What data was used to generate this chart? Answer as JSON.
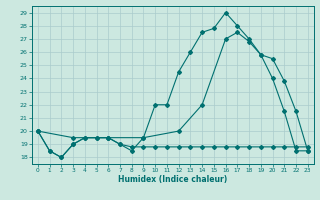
{
  "title": "",
  "xlabel": "Humidex (Indice chaleur)",
  "ylabel": "",
  "background_color": "#cce8e0",
  "grid_color": "#aacccc",
  "line_color": "#007070",
  "xlim": [
    -0.5,
    23.5
  ],
  "ylim": [
    17.5,
    29.5
  ],
  "xticks": [
    0,
    1,
    2,
    3,
    4,
    5,
    6,
    7,
    8,
    9,
    10,
    11,
    12,
    13,
    14,
    15,
    16,
    17,
    18,
    19,
    20,
    21,
    22,
    23
  ],
  "yticks": [
    18,
    19,
    20,
    21,
    22,
    23,
    24,
    25,
    26,
    27,
    28,
    29
  ],
  "line1_x": [
    0,
    1,
    2,
    3,
    4,
    5,
    6,
    7,
    8,
    9,
    10,
    11,
    12,
    13,
    14,
    15,
    16,
    17,
    18,
    19,
    20,
    21,
    22,
    23
  ],
  "line1_y": [
    20,
    18.5,
    18,
    19,
    19.5,
    19.5,
    19.5,
    19,
    18.8,
    18.8,
    18.8,
    18.8,
    18.8,
    18.8,
    18.8,
    18.8,
    18.8,
    18.8,
    18.8,
    18.8,
    18.8,
    18.8,
    18.8,
    18.8
  ],
  "line2_x": [
    0,
    1,
    2,
    3,
    4,
    5,
    6,
    7,
    8,
    9,
    10,
    11,
    12,
    13,
    14,
    15,
    16,
    17,
    18,
    19,
    20,
    21,
    22,
    23
  ],
  "line2_y": [
    20,
    18.5,
    18,
    19,
    19.5,
    19.5,
    19.5,
    19,
    18.5,
    19.5,
    22,
    22,
    24.5,
    26,
    27.5,
    27.8,
    29,
    28,
    27,
    25.8,
    24,
    21.5,
    18.5,
    18.5
  ],
  "line3_x": [
    0,
    3,
    6,
    9,
    12,
    14,
    16,
    17,
    18,
    19,
    20,
    21,
    22,
    23
  ],
  "line3_y": [
    20,
    19.5,
    19.5,
    19.5,
    20,
    22,
    27,
    27.5,
    26.8,
    25.8,
    25.5,
    23.8,
    21.5,
    18.5
  ]
}
